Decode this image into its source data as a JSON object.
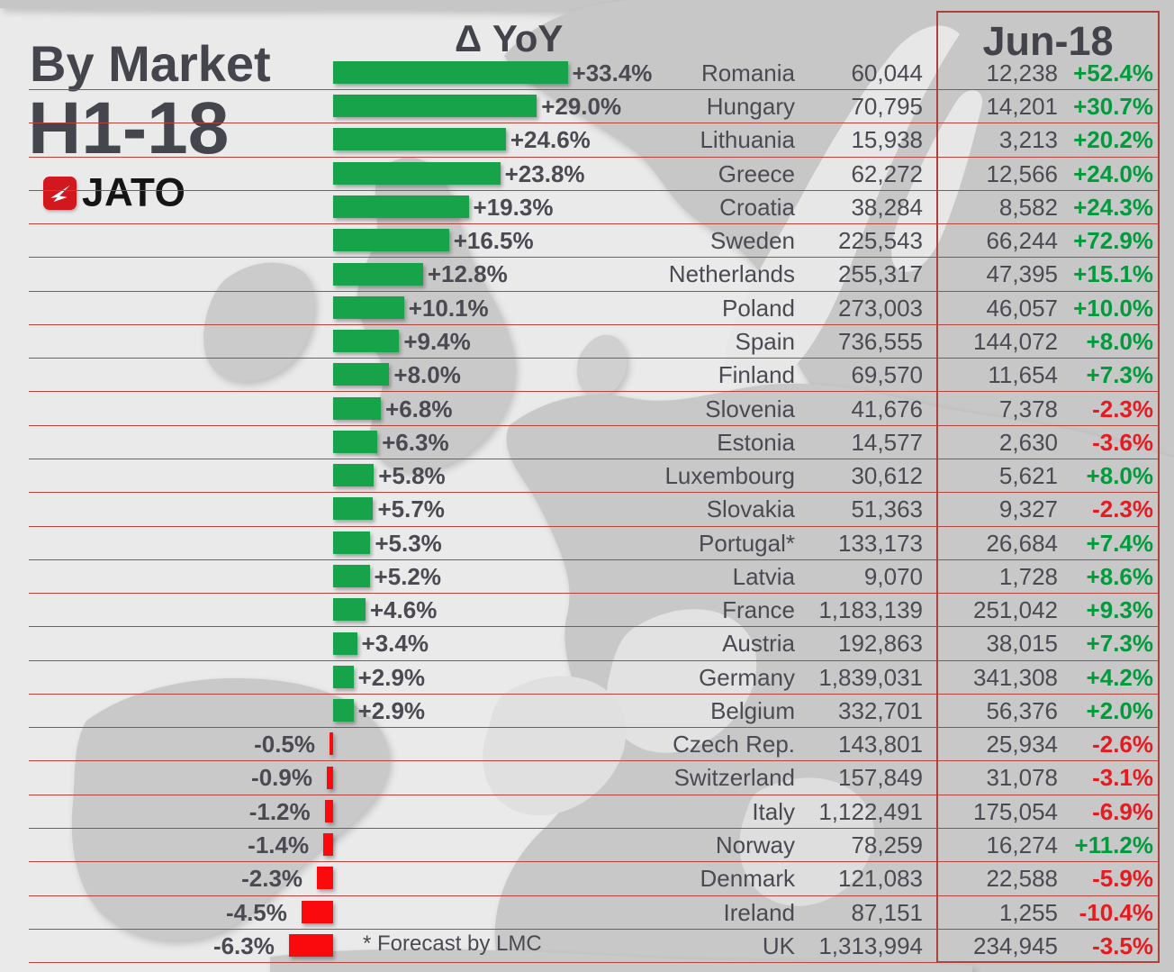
{
  "header": {
    "title_line1": "By Market",
    "title_line2": "H1-18",
    "logo_text": "JATO",
    "delta_header": "Δ YoY",
    "jun_header": "Jun-18"
  },
  "footnote": {
    "text": "* Forecast by LMC"
  },
  "colors": {
    "bar_positive": "#17a34a",
    "bar_negative": "#fa0a0c",
    "pct_positive": "#009c3c",
    "pct_negative": "#e81a1f",
    "grid_line": "#b2453e",
    "text_dark": "#4a4a52",
    "logo_red": "#d2181e"
  },
  "rows": [
    {
      "country": "Romania",
      "yoy_label": "+33.4%",
      "yoy_value": 33.4,
      "h1_volume": "60,044",
      "jun_volume": "12,238",
      "jun_yoy_label": "+52.4%",
      "jun_yoy_positive": true
    },
    {
      "country": "Hungary",
      "yoy_label": "+29.0%",
      "yoy_value": 29.0,
      "h1_volume": "70,795",
      "jun_volume": "14,201",
      "jun_yoy_label": "+30.7%",
      "jun_yoy_positive": true
    },
    {
      "country": "Lithuania",
      "yoy_label": "+24.6%",
      "yoy_value": 24.6,
      "h1_volume": "15,938",
      "jun_volume": "3,213",
      "jun_yoy_label": "+20.2%",
      "jun_yoy_positive": true
    },
    {
      "country": "Greece",
      "yoy_label": "+23.8%",
      "yoy_value": 23.8,
      "h1_volume": "62,272",
      "jun_volume": "12,566",
      "jun_yoy_label": "+24.0%",
      "jun_yoy_positive": true
    },
    {
      "country": "Croatia",
      "yoy_label": "+19.3%",
      "yoy_value": 19.3,
      "h1_volume": "38,284",
      "jun_volume": "8,582",
      "jun_yoy_label": "+24.3%",
      "jun_yoy_positive": true
    },
    {
      "country": "Sweden",
      "yoy_label": "+16.5%",
      "yoy_value": 16.5,
      "h1_volume": "225,543",
      "jun_volume": "66,244",
      "jun_yoy_label": "+72.9%",
      "jun_yoy_positive": true
    },
    {
      "country": "Netherlands",
      "yoy_label": "+12.8%",
      "yoy_value": 12.8,
      "h1_volume": "255,317",
      "jun_volume": "47,395",
      "jun_yoy_label": "+15.1%",
      "jun_yoy_positive": true
    },
    {
      "country": "Poland",
      "yoy_label": "+10.1%",
      "yoy_value": 10.1,
      "h1_volume": "273,003",
      "jun_volume": "46,057",
      "jun_yoy_label": "+10.0%",
      "jun_yoy_positive": true
    },
    {
      "country": "Spain",
      "yoy_label": "+9.4%",
      "yoy_value": 9.4,
      "h1_volume": "736,555",
      "jun_volume": "144,072",
      "jun_yoy_label": "+8.0%",
      "jun_yoy_positive": true
    },
    {
      "country": "Finland",
      "yoy_label": "+8.0%",
      "yoy_value": 8.0,
      "h1_volume": "69,570",
      "jun_volume": "11,654",
      "jun_yoy_label": "+7.3%",
      "jun_yoy_positive": true
    },
    {
      "country": "Slovenia",
      "yoy_label": "+6.8%",
      "yoy_value": 6.8,
      "h1_volume": "41,676",
      "jun_volume": "7,378",
      "jun_yoy_label": "-2.3%",
      "jun_yoy_positive": false
    },
    {
      "country": "Estonia",
      "yoy_label": "+6.3%",
      "yoy_value": 6.3,
      "h1_volume": "14,577",
      "jun_volume": "2,630",
      "jun_yoy_label": "-3.6%",
      "jun_yoy_positive": false
    },
    {
      "country": "Luxembourg",
      "yoy_label": "+5.8%",
      "yoy_value": 5.8,
      "h1_volume": "30,612",
      "jun_volume": "5,621",
      "jun_yoy_label": "+8.0%",
      "jun_yoy_positive": true
    },
    {
      "country": "Slovakia",
      "yoy_label": "+5.7%",
      "yoy_value": 5.7,
      "h1_volume": "51,363",
      "jun_volume": "9,327",
      "jun_yoy_label": "-2.3%",
      "jun_yoy_positive": false
    },
    {
      "country": "Portugal*",
      "yoy_label": "+5.3%",
      "yoy_value": 5.3,
      "h1_volume": "133,173",
      "jun_volume": "26,684",
      "jun_yoy_label": "+7.4%",
      "jun_yoy_positive": true
    },
    {
      "country": "Latvia",
      "yoy_label": "+5.2%",
      "yoy_value": 5.2,
      "h1_volume": "9,070",
      "jun_volume": "1,728",
      "jun_yoy_label": "+8.6%",
      "jun_yoy_positive": true
    },
    {
      "country": "France",
      "yoy_label": "+4.6%",
      "yoy_value": 4.6,
      "h1_volume": "1,183,139",
      "jun_volume": "251,042",
      "jun_yoy_label": "+9.3%",
      "jun_yoy_positive": true
    },
    {
      "country": "Austria",
      "yoy_label": "+3.4%",
      "yoy_value": 3.4,
      "h1_volume": "192,863",
      "jun_volume": "38,015",
      "jun_yoy_label": "+7.3%",
      "jun_yoy_positive": true
    },
    {
      "country": "Germany",
      "yoy_label": "+2.9%",
      "yoy_value": 2.9,
      "h1_volume": "1,839,031",
      "jun_volume": "341,308",
      "jun_yoy_label": "+4.2%",
      "jun_yoy_positive": true
    },
    {
      "country": "Belgium",
      "yoy_label": "+2.9%",
      "yoy_value": 2.9,
      "h1_volume": "332,701",
      "jun_volume": "56,376",
      "jun_yoy_label": "+2.0%",
      "jun_yoy_positive": true
    },
    {
      "country": "Czech Rep.",
      "yoy_label": "-0.5%",
      "yoy_value": -0.5,
      "h1_volume": "143,801",
      "jun_volume": "25,934",
      "jun_yoy_label": "-2.6%",
      "jun_yoy_positive": false
    },
    {
      "country": "Switzerland",
      "yoy_label": "-0.9%",
      "yoy_value": -0.9,
      "h1_volume": "157,849",
      "jun_volume": "31,078",
      "jun_yoy_label": "-3.1%",
      "jun_yoy_positive": false
    },
    {
      "country": "Italy",
      "yoy_label": "-1.2%",
      "yoy_value": -1.2,
      "h1_volume": "1,122,491",
      "jun_volume": "175,054",
      "jun_yoy_label": "-6.9%",
      "jun_yoy_positive": false
    },
    {
      "country": "Norway",
      "yoy_label": "-1.4%",
      "yoy_value": -1.4,
      "h1_volume": "78,259",
      "jun_volume": "16,274",
      "jun_yoy_label": "+11.2%",
      "jun_yoy_positive": true
    },
    {
      "country": "Denmark",
      "yoy_label": "-2.3%",
      "yoy_value": -2.3,
      "h1_volume": "121,083",
      "jun_volume": "22,588",
      "jun_yoy_label": "-5.9%",
      "jun_yoy_positive": false
    },
    {
      "country": "Ireland",
      "yoy_label": "-4.5%",
      "yoy_value": -4.5,
      "h1_volume": "87,151",
      "jun_volume": "1,255",
      "jun_yoy_label": "-10.4%",
      "jun_yoy_positive": false
    },
    {
      "country": "UK",
      "yoy_label": "-6.3%",
      "yoy_value": -6.3,
      "h1_volume": "1,313,994",
      "jun_volume": "234,945",
      "jun_yoy_label": "-3.5%",
      "jun_yoy_positive": false
    }
  ],
  "chart_data": {
    "type": "bar",
    "title": "By Market H1-18",
    "comparison_header": "Δ YoY",
    "period_header": "Jun-18",
    "orientation": "horizontal",
    "footnote": "* Forecast by LMC",
    "categories": [
      "Romania",
      "Hungary",
      "Lithuania",
      "Greece",
      "Croatia",
      "Sweden",
      "Netherlands",
      "Poland",
      "Spain",
      "Finland",
      "Slovenia",
      "Estonia",
      "Luxembourg",
      "Slovakia",
      "Portugal*",
      "Latvia",
      "France",
      "Austria",
      "Germany",
      "Belgium",
      "Czech Rep.",
      "Switzerland",
      "Italy",
      "Norway",
      "Denmark",
      "Ireland",
      "UK"
    ],
    "series": [
      {
        "name": "H1-18 YoY change (%)",
        "values": [
          33.4,
          29.0,
          24.6,
          23.8,
          19.3,
          16.5,
          12.8,
          10.1,
          9.4,
          8.0,
          6.8,
          6.3,
          5.8,
          5.7,
          5.3,
          5.2,
          4.6,
          3.4,
          2.9,
          2.9,
          -0.5,
          -0.9,
          -1.2,
          -1.4,
          -2.3,
          -4.5,
          -6.3
        ]
      },
      {
        "name": "H1-18 volume",
        "values": [
          60044,
          70795,
          15938,
          62272,
          38284,
          225543,
          255317,
          273003,
          736555,
          69570,
          41676,
          14577,
          30612,
          51363,
          133173,
          9070,
          1183139,
          192863,
          1839031,
          332701,
          143801,
          157849,
          1122491,
          78259,
          121083,
          87151,
          1313994
        ]
      },
      {
        "name": "Jun-18 volume",
        "values": [
          12238,
          14201,
          3213,
          12566,
          8582,
          66244,
          47395,
          46057,
          144072,
          11654,
          7378,
          2630,
          5621,
          9327,
          26684,
          1728,
          251042,
          38015,
          341308,
          56376,
          25934,
          31078,
          175054,
          16274,
          22588,
          1255,
          234945
        ]
      },
      {
        "name": "Jun-18 YoY change (%)",
        "values": [
          52.4,
          30.7,
          20.2,
          24.0,
          24.3,
          72.9,
          15.1,
          10.0,
          8.0,
          7.3,
          -2.3,
          -3.6,
          8.0,
          -2.3,
          7.4,
          8.6,
          9.3,
          7.3,
          4.2,
          2.0,
          -2.6,
          -3.1,
          -6.9,
          11.2,
          -5.9,
          -10.4,
          -3.5
        ]
      }
    ],
    "bar_color_positive": "#17a34a",
    "bar_color_negative": "#fa0a0c",
    "grid": "horizontal-red-lines",
    "legend_position": "none"
  }
}
